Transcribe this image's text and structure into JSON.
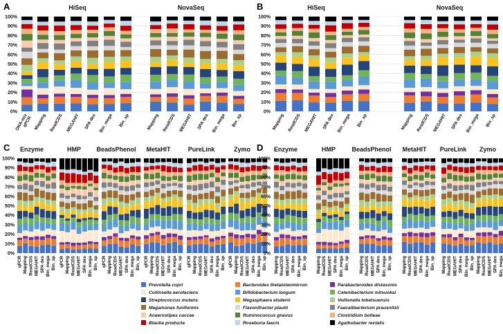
{
  "colors": {
    "Prevotella copri": "#4472c4",
    "Bacteroides thetaiotaomicron": "#ed7d31",
    "Parabacteroides distasonis": "#7030a0",
    "Collinsella aerofaciens": "#fce9cf",
    "Bifidobacterium longum": "#5b9bd5",
    "Catenibacterium mitsuokai": "#71b35a",
    "Streptococcus mutans": "#264478",
    "Megasphaera elsdenii": "#f9c21e",
    "Veillonella tobetsuensis": "#a9d18e",
    "Megamonas funiformis": "#9c6b30",
    "Flavonifractor plautii": "#d9d9d9",
    "Faecalibacterium prausnitzii": "#808080",
    "Anaerostipes caccae": "#f8cbad",
    "Ruminococcus gnavus": "#548235",
    "Clostridium bolteae": "#f4b183",
    "Blautia producta": "#c00000",
    "Roseburia faecis": "#bdd7ee",
    "Agathobacter rectalis": "#000000"
  },
  "chart_data": [
    {
      "panel": "A",
      "type": "stacked-bar",
      "groups": [
        "HiSeq",
        "NovaSeq"
      ],
      "categories": [
        "DNA-mix qPCR",
        "Mapping",
        "ReadCDS",
        "MEGAHIT",
        "SPA des",
        "Bin_mega",
        "Bin_sp"
      ],
      "y_ticks": [
        "0%",
        "10%",
        "20%",
        "30%",
        "40%",
        "50%",
        "60%",
        "70%",
        "80%",
        "90%",
        "100%"
      ],
      "ylim": [
        0,
        100
      ]
    },
    {
      "panel": "B",
      "type": "stacked-bar",
      "groups": [
        "HiSeq",
        "NovaSeq"
      ],
      "categories": [
        "Mapping",
        "ReadCDS",
        "MEGAHIT",
        "SPA des",
        "Bin_mega",
        "Bin_sp"
      ],
      "y_ticks": [
        "0%",
        "10%",
        "20%",
        "30%",
        "40%",
        "50%",
        "60%",
        "70%",
        "80%",
        "90%",
        "100%"
      ],
      "ylim": [
        0,
        100
      ]
    },
    {
      "panel": "C",
      "type": "stacked-bar",
      "groups": [
        "Enzyme",
        "HMP",
        "BeadsPhenol",
        "MetaHIT",
        "PureLink",
        "Zymo"
      ],
      "categories": [
        "qPCR",
        "Mapping",
        "ReadCDS",
        "MEGAHIT",
        "SPA des",
        "Bin_mega",
        "Bin_sp"
      ],
      "y_ticks": [
        "0%",
        "10%",
        "20%",
        "30%",
        "40%",
        "50%",
        "60%",
        "70%",
        "80%",
        "90%",
        "100%"
      ],
      "ylim": [
        0,
        100
      ]
    },
    {
      "panel": "D",
      "type": "stacked-bar",
      "groups": [
        "Enzyme",
        "HMP",
        "BeadsPhenol",
        "MetaHIT",
        "PureLink",
        "Zymo"
      ],
      "categories": [
        "Mapping",
        "ReadCDS",
        "MEGAHIT",
        "SPA des",
        "Bin_mega",
        "Bin_sp"
      ],
      "y_ticks": [
        "0%",
        "10%",
        "20%",
        "30%",
        "40%",
        "50%",
        "60%",
        "70%",
        "80%",
        "90%",
        "100%"
      ],
      "ylim": [
        0,
        100
      ]
    }
  ],
  "legend": [
    "Prevotella copri",
    "Bacteroides thetaiotaomicron",
    "Parabacteroides distasonis",
    "Collinsella aerofaciens",
    "Bifidobacterium longum",
    "Catenibacterium mitsuokai",
    "Streptococcus mutans",
    "Megasphaera elsdenii",
    "Veillonella tobetsuensis",
    "Megamonas funiformis",
    "Flavonifractor plautii",
    "Faecalibacterium prausnitzii",
    "Anaerostipes caccae",
    "Ruminococcus gnavus",
    "Clostridium bolteae",
    "Blautia producta",
    "Roseburia faecis",
    "Agathobacter rectalis"
  ],
  "profiles": {
    "even": [
      8,
      6,
      3,
      6,
      7,
      6,
      7,
      6,
      5,
      7,
      4,
      5,
      4,
      5,
      4,
      5,
      4,
      4
    ],
    "dnamix": [
      7,
      8,
      9,
      3,
      4,
      4,
      5,
      4,
      8,
      7,
      6,
      4,
      6,
      7,
      5,
      6,
      4,
      3
    ],
    "hmp": [
      5,
      4,
      3,
      12,
      7,
      5,
      3,
      5,
      4,
      6,
      4,
      4,
      6,
      3,
      4,
      9,
      4,
      12
    ],
    "variant": [
      10,
      7,
      4,
      5,
      8,
      6,
      9,
      8,
      4,
      6,
      4,
      4,
      3,
      5,
      4,
      5,
      4,
      4
    ]
  }
}
